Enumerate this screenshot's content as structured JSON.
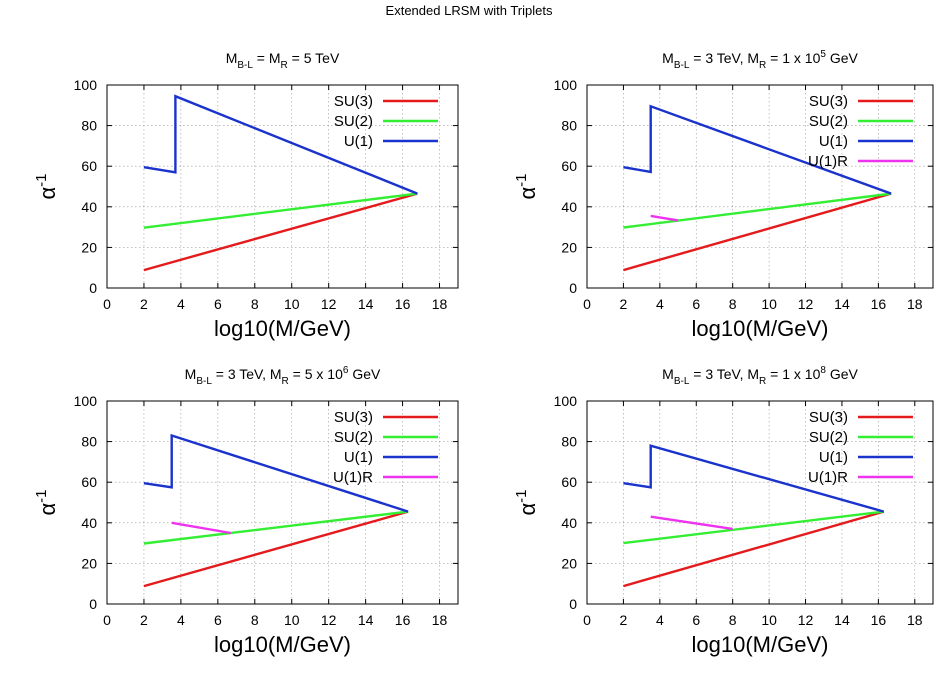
{
  "figure_title": "Extended LRSM with Triplets",
  "colors": {
    "SU(3)": "#e41a1c",
    "SU(2)": "#33ee33",
    "U(1)": "#1a33cc",
    "U(1)R": "#ee33ee"
  },
  "chart_data": [
    {
      "type": "line",
      "title": "M_{B-L} = M_R = 5 TeV",
      "title_parts": {
        "pre": "M",
        "sub1": "B-L",
        "mid": " = M",
        "sub2": "R",
        "post": " = 5 TeV",
        "sup": "",
        "tail": ""
      },
      "xlabel": "log10(M/GeV)",
      "ylabel": "α-1",
      "xlim": [
        0,
        19
      ],
      "ylim": [
        0,
        100
      ],
      "xticks": [
        "0",
        "2",
        "4",
        "6",
        "8",
        "10",
        "12",
        "14",
        "16",
        "18"
      ],
      "yticks": [
        "0",
        "20",
        "40",
        "60",
        "80",
        "100"
      ],
      "grid": true,
      "legend": "top-right",
      "series": [
        {
          "name": "SU(3)",
          "points": [
            [
              2,
              8.8
            ],
            [
              16.8,
              46.5
            ]
          ]
        },
        {
          "name": "SU(2)",
          "points": [
            [
              2,
              29.7
            ],
            [
              16.8,
              46.5
            ]
          ]
        },
        {
          "name": "U(1)",
          "points": [
            [
              2,
              59.5
            ],
            [
              3.7,
              57.0
            ],
            [
              3.7,
              94.5
            ],
            [
              16.8,
              46.5
            ]
          ]
        }
      ]
    },
    {
      "type": "line",
      "title": "M_{B-L} = 3 TeV, M_R = 1 x 10^5 GeV",
      "title_parts": {
        "pre": "M",
        "sub1": "B-L",
        "mid": " = 3 TeV, M",
        "sub2": "R",
        "post": " = 1 x 10",
        "sup": "5",
        "tail": " GeV"
      },
      "xlabel": "log10(M/GeV)",
      "ylabel": "α-1",
      "xlim": [
        0,
        19
      ],
      "ylim": [
        0,
        100
      ],
      "xticks": [
        "0",
        "2",
        "4",
        "6",
        "8",
        "10",
        "12",
        "14",
        "16",
        "18"
      ],
      "yticks": [
        "0",
        "20",
        "40",
        "60",
        "80",
        "100"
      ],
      "grid": true,
      "legend": "top-right",
      "series": [
        {
          "name": "SU(3)",
          "points": [
            [
              2,
              8.8
            ],
            [
              16.7,
              46.5
            ]
          ]
        },
        {
          "name": "SU(2)",
          "points": [
            [
              2,
              29.8
            ],
            [
              16.7,
              46.5
            ]
          ]
        },
        {
          "name": "U(1)",
          "points": [
            [
              2,
              59.5
            ],
            [
              3.5,
              57.2
            ],
            [
              3.5,
              89.5
            ],
            [
              16.7,
              46.5
            ]
          ]
        },
        {
          "name": "U(1)R",
          "points": [
            [
              3.5,
              35.5
            ],
            [
              5.0,
              33.3
            ]
          ]
        }
      ]
    },
    {
      "type": "line",
      "title": "M_{B-L} = 3 TeV, M_R = 5 x 10^6 GeV",
      "title_parts": {
        "pre": "M",
        "sub1": "B-L",
        "mid": " = 3 TeV, M",
        "sub2": "R",
        "post": " = 5 x 10",
        "sup": "6",
        "tail": " GeV"
      },
      "xlabel": "log10(M/GeV)",
      "ylabel": "α-1",
      "xlim": [
        0,
        19
      ],
      "ylim": [
        0,
        100
      ],
      "xticks": [
        "0",
        "2",
        "4",
        "6",
        "8",
        "10",
        "12",
        "14",
        "16",
        "18"
      ],
      "yticks": [
        "0",
        "20",
        "40",
        "60",
        "80",
        "100"
      ],
      "grid": true,
      "legend": "top-right",
      "series": [
        {
          "name": "SU(3)",
          "points": [
            [
              2,
              8.8
            ],
            [
              16.3,
              45.5
            ]
          ]
        },
        {
          "name": "SU(2)",
          "points": [
            [
              2,
              29.8
            ],
            [
              16.3,
              45.5
            ]
          ]
        },
        {
          "name": "U(1)",
          "points": [
            [
              2,
              59.5
            ],
            [
              3.5,
              57.5
            ],
            [
              3.5,
              83.0
            ],
            [
              16.3,
              45.5
            ]
          ]
        },
        {
          "name": "U(1)R",
          "points": [
            [
              3.5,
              40.0
            ],
            [
              6.7,
              35.0
            ]
          ]
        }
      ]
    },
    {
      "type": "line",
      "title": "M_{B-L} = 3 TeV, M_R = 1 x 10^8 GeV",
      "title_parts": {
        "pre": "M",
        "sub1": "B-L",
        "mid": " = 3 TeV, M",
        "sub2": "R",
        "post": " = 1 x 10",
        "sup": "8",
        "tail": " GeV"
      },
      "xlabel": "log10(M/GeV)",
      "ylabel": "α-1",
      "xlim": [
        0,
        19
      ],
      "ylim": [
        0,
        100
      ],
      "xticks": [
        "0",
        "2",
        "4",
        "6",
        "8",
        "10",
        "12",
        "14",
        "16",
        "18"
      ],
      "yticks": [
        "0",
        "20",
        "40",
        "60",
        "80",
        "100"
      ],
      "grid": true,
      "legend": "top-right",
      "series": [
        {
          "name": "SU(3)",
          "points": [
            [
              2,
              8.8
            ],
            [
              16.3,
              45.5
            ]
          ]
        },
        {
          "name": "SU(2)",
          "points": [
            [
              2,
              30.0
            ],
            [
              16.3,
              45.5
            ]
          ]
        },
        {
          "name": "U(1)",
          "points": [
            [
              2,
              59.5
            ],
            [
              3.5,
              57.5
            ],
            [
              3.5,
              78.0
            ],
            [
              16.3,
              45.5
            ]
          ]
        },
        {
          "name": "U(1)R",
          "points": [
            [
              3.5,
              43.0
            ],
            [
              8.0,
              37.0
            ]
          ]
        }
      ]
    }
  ]
}
